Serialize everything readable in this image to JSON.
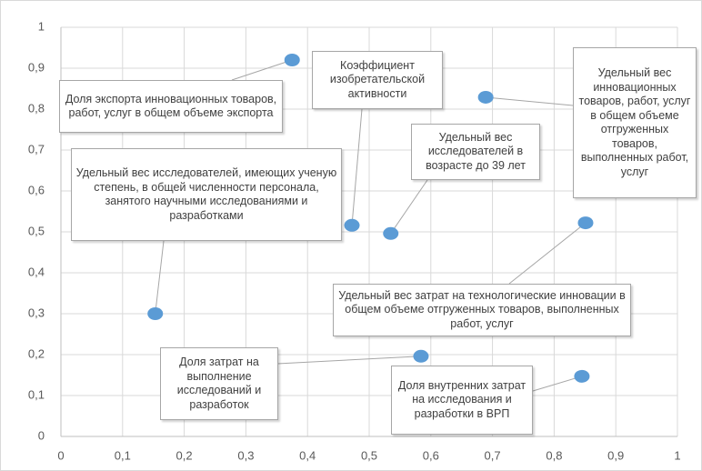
{
  "chart_data": {
    "type": "scatter",
    "x": [
      0.375,
      0.472,
      0.535,
      0.689,
      0.153,
      0.851,
      0.584,
      0.845
    ],
    "values": [
      0.92,
      0.516,
      0.496,
      0.829,
      0.3,
      0.522,
      0.196,
      0.147
    ],
    "labels": [
      "Доля экспорта инновационных товаров, работ, услуг в общем объеме экспорта",
      "Коэффициент изобретательской активности",
      "Удельный вес исследователей в возрасте до 39 лет",
      "Удельный вес инновационных товаров, работ, услуг в общем объеме отгруженных товаров, выполненных работ, услуг",
      "Удельный вес исследователей, имеющих ученую степень, в общей численности персонала, занятого научными исследованиями и разработками",
      "Удельный вес затрат на технологические инновации в общем объеме отгруженных товаров, выполненных работ, услуг",
      "Доля затрат на выполнение исследований и разработок",
      "Доля внутренних затрат на исследования и разработки в ВРП"
    ],
    "color": "#5b9bd5",
    "xlim": [
      0,
      1
    ],
    "xticks": [
      0,
      {
        "value": 0.1,
        "label": "0,1"
      },
      {
        "value": 0.2,
        "label": "0,2"
      },
      {
        "value": 0.3,
        "label": "0,3"
      },
      {
        "value": 0.4,
        "label": "0,4"
      },
      {
        "value": 0.5,
        "label": "0,5"
      },
      {
        "value": 0.6,
        "label": "0,6"
      },
      {
        "value": 0.7,
        "label": "0,7"
      },
      {
        "value": 0.8,
        "label": "0,8"
      },
      {
        "value": 0.9,
        "label": "0,9"
      },
      1
    ],
    "ylim": [
      0,
      1
    ],
    "yticks": [
      0,
      {
        "value": 0.1,
        "label": "0,1"
      },
      {
        "value": 0.2,
        "label": "0,2"
      },
      {
        "value": 0.3,
        "label": "0,3"
      },
      {
        "value": 0.4,
        "label": "0,4"
      },
      {
        "value": 0.5,
        "label": "0,5"
      },
      {
        "value": 0.6,
        "label": "0,6"
      },
      {
        "value": 0.7,
        "label": "0,7"
      },
      {
        "value": 0.8,
        "label": "0,8"
      },
      {
        "value": 0.9,
        "label": "0,9"
      },
      1
    ],
    "grid": true
  }
}
